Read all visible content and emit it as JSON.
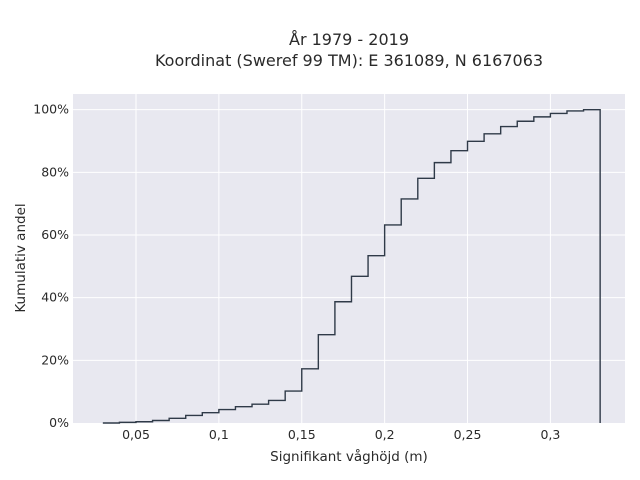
{
  "chart_data": {
    "type": "line",
    "subtype": "cumulative-step",
    "title_line1": "År 1979 - 2019",
    "title_line2": "Koordinat (Sweref 99 TM): E 361089, N 6167063",
    "xlabel": "Signifikant våghöjd (m)",
    "ylabel": "Kumulativ andel",
    "xlim": [
      0.012,
      0.345
    ],
    "ylim": [
      0,
      1.05
    ],
    "x_ticks": [
      0.05,
      0.1,
      0.15,
      0.2,
      0.25,
      0.3
    ],
    "x_tick_labels": [
      "0,05",
      "0,1",
      "0,15",
      "0,2",
      "0,25",
      "0,3"
    ],
    "y_ticks": [
      0,
      0.2,
      0.4,
      0.6,
      0.8,
      1.0
    ],
    "y_tick_labels": [
      "0%",
      "20%",
      "40%",
      "60%",
      "80%",
      "100%"
    ],
    "grid": true,
    "plot_background": "#e8e8f0",
    "line_color": "#2f3a48",
    "bin_edges": [
      0.03,
      0.04,
      0.05,
      0.06,
      0.07,
      0.08,
      0.09,
      0.1,
      0.11,
      0.12,
      0.13,
      0.14,
      0.15,
      0.16,
      0.17,
      0.18,
      0.19,
      0.2,
      0.21,
      0.22,
      0.23,
      0.24,
      0.25,
      0.26,
      0.27,
      0.28,
      0.29,
      0.3,
      0.31,
      0.32,
      0.33
    ],
    "cumulative": [
      0.0,
      0.002,
      0.004,
      0.008,
      0.015,
      0.024,
      0.033,
      0.043,
      0.052,
      0.06,
      0.072,
      0.102,
      0.173,
      0.282,
      0.387,
      0.468,
      0.534,
      0.632,
      0.715,
      0.781,
      0.831,
      0.869,
      0.899,
      0.923,
      0.946,
      0.963,
      0.977,
      0.988,
      0.996,
      1.0
    ]
  }
}
